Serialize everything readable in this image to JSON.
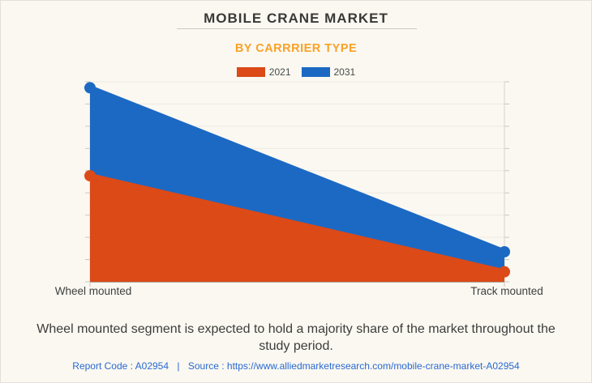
{
  "page": {
    "background": "#FAF8F1"
  },
  "header": {
    "title": "MOBILE CRANE MARKET",
    "subtitle": "BY CARRRIER TYPE",
    "subtitle_color": "#F9A226"
  },
  "legend": [
    {
      "label": "2021",
      "color": "#DB4A17"
    },
    {
      "label": "2031",
      "color": "#1C69C4"
    }
  ],
  "chart_data": {
    "type": "area",
    "categories": [
      "Wheel mounted",
      "Track mounted"
    ],
    "series": [
      {
        "name": "2031",
        "color": "#1C69C4",
        "values": [
          97,
          15
        ]
      },
      {
        "name": "2021",
        "color": "#DB4A17",
        "values": [
          53,
          5
        ]
      }
    ],
    "ylim": [
      0,
      100
    ],
    "y_divisions": 9,
    "grid": true,
    "legend_position": "top",
    "xlabel": "",
    "ylabel": "",
    "gridline_color": "#EDEAE1",
    "axis_color": "#D8D5CC",
    "baseline_color": "#ABA8A0",
    "tick_color": "#C9C6BD"
  },
  "footer": {
    "caption": "Wheel mounted segment is expected to hold a majority share of the market throughout the study period.",
    "report_code": "Report Code : A02954",
    "separator": "|",
    "source_label": "Source :",
    "source_url": "https://www.alliedmarketresearch.com/mobile-crane-market-A02954",
    "link_color": "#2A69D2"
  }
}
